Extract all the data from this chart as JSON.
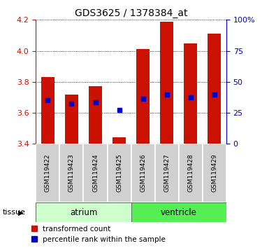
{
  "title": "GDS3625 / 1378384_at",
  "samples": [
    "GSM119422",
    "GSM119423",
    "GSM119424",
    "GSM119425",
    "GSM119426",
    "GSM119427",
    "GSM119428",
    "GSM119429"
  ],
  "red_values": [
    3.83,
    3.72,
    3.77,
    3.44,
    4.01,
    4.19,
    4.05,
    4.11
  ],
  "blue_values": [
    3.68,
    3.66,
    3.67,
    3.62,
    3.69,
    3.72,
    3.7,
    3.72
  ],
  "y_min": 3.4,
  "y_max": 4.2,
  "y_ticks": [
    3.4,
    3.6,
    3.8,
    4.0,
    4.2
  ],
  "right_y_ticks": [
    0,
    25,
    50,
    75,
    100
  ],
  "right_y_tick_labels": [
    "0",
    "25",
    "50",
    "75",
    "100%"
  ],
  "atrium_indices": [
    0,
    1,
    2,
    3
  ],
  "ventricle_indices": [
    4,
    5,
    6,
    7
  ],
  "red_color": "#cc1100",
  "blue_color": "#0000cc",
  "atrium_color": "#ccffcc",
  "ventricle_color": "#55ee55",
  "bar_width": 0.55,
  "tissue_label": "tissue",
  "legend_red": "transformed count",
  "legend_blue": "percentile rank within the sample"
}
